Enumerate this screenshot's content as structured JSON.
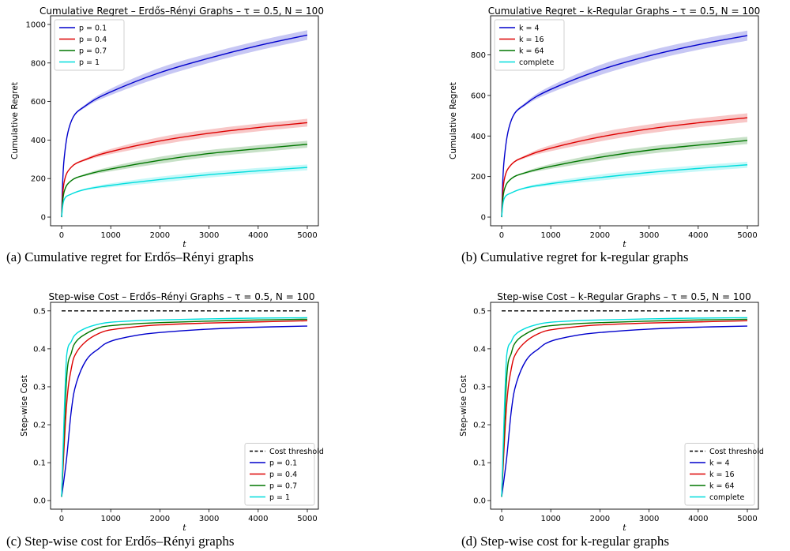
{
  "chart_data": [
    {
      "type": "line",
      "title": "Cumulative Regret – Erdős–Rényi Graphs – τ = 0.5, N = 100",
      "xlabel": "t",
      "ylabel": "Cumulative Regret",
      "caption": "(a) Cumulative regret for Erdős–Rényi graphs",
      "xlim": [
        0,
        5000
      ],
      "ylim": [
        0,
        1000
      ],
      "xticks": [
        "0",
        "1000",
        "2000",
        "3000",
        "4000",
        "5000"
      ],
      "yticks": [
        "0",
        "200",
        "400",
        "600",
        "800",
        "1000"
      ],
      "legend_position": "upper-left",
      "x": [
        0,
        50,
        200,
        500,
        1000,
        2000,
        3000,
        4000,
        5000
      ],
      "series": [
        {
          "name": "p = 0.1",
          "color": "#0000cc",
          "values": [
            0,
            300,
            500,
            580,
            650,
            750,
            825,
            890,
            945
          ],
          "band": 25
        },
        {
          "name": "p = 0.4",
          "color": "#dd0000",
          "values": [
            0,
            180,
            260,
            300,
            340,
            395,
            435,
            465,
            490
          ],
          "band": 20
        },
        {
          "name": "p = 0.7",
          "color": "#007700",
          "values": [
            0,
            130,
            190,
            220,
            250,
            295,
            330,
            355,
            378
          ],
          "band": 18
        },
        {
          "name": "p = 1",
          "color": "#00dddd",
          "values": [
            0,
            90,
            120,
            145,
            165,
            195,
            220,
            240,
            258
          ],
          "band": 15
        }
      ]
    },
    {
      "type": "line",
      "title": "Cumulative Regret – k-Regular Graphs – τ = 0.5, N = 100",
      "xlabel": "t",
      "ylabel": "Cumulative Regret",
      "caption": "(b) Cumulative regret for k-regular graphs",
      "xlim": [
        0,
        5000
      ],
      "ylim": [
        0,
        950
      ],
      "xticks": [
        "0",
        "1000",
        "2000",
        "3000",
        "4000",
        "5000"
      ],
      "yticks": [
        "0",
        "200",
        "400",
        "600",
        "800"
      ],
      "legend_position": "upper-left",
      "x": [
        0,
        50,
        200,
        500,
        1000,
        2000,
        3000,
        4000,
        5000
      ],
      "series": [
        {
          "name": "k = 4",
          "color": "#0000cc",
          "values": [
            0,
            280,
            480,
            560,
            630,
            725,
            795,
            850,
            895
          ],
          "band": 25
        },
        {
          "name": "k = 16",
          "color": "#dd0000",
          "values": [
            0,
            180,
            260,
            300,
            340,
            395,
            435,
            465,
            490
          ],
          "band": 22
        },
        {
          "name": "k = 64",
          "color": "#007700",
          "values": [
            0,
            130,
            190,
            220,
            250,
            295,
            330,
            355,
            378
          ],
          "band": 18
        },
        {
          "name": "complete",
          "color": "#00dddd",
          "values": [
            0,
            90,
            120,
            145,
            165,
            195,
            220,
            240,
            258
          ],
          "band": 15
        }
      ]
    },
    {
      "type": "line",
      "title": "Step-wise Cost – Erdős–Rényi Graphs – τ = 0.5, N = 100",
      "xlabel": "t",
      "ylabel": "Step-wise Cost",
      "caption": "(c) Step-wise cost for Erdős–Rényi graphs",
      "xlim": [
        0,
        5000
      ],
      "ylim": [
        0,
        0.5
      ],
      "xticks": [
        "0",
        "1000",
        "2000",
        "3000",
        "4000",
        "5000"
      ],
      "yticks": [
        "0.0",
        "0.1",
        "0.2",
        "0.3",
        "0.4",
        "0.5"
      ],
      "legend_position": "lower-right",
      "threshold": {
        "name": "Cost threshold",
        "value": 0.5,
        "color": "#000000"
      },
      "x": [
        0,
        100,
        200,
        300,
        500,
        750,
        1000,
        1500,
        2000,
        3000,
        4000,
        5000
      ],
      "series": [
        {
          "name": "p = 0.1",
          "color": "#0000cc",
          "values": [
            0.01,
            0.11,
            0.24,
            0.31,
            0.37,
            0.4,
            0.42,
            0.435,
            0.443,
            0.452,
            0.457,
            0.46
          ]
        },
        {
          "name": "p = 0.4",
          "color": "#dd0000",
          "values": [
            0.01,
            0.25,
            0.35,
            0.39,
            0.42,
            0.44,
            0.45,
            0.458,
            0.463,
            0.468,
            0.471,
            0.474
          ]
        },
        {
          "name": "p = 0.7",
          "color": "#007700",
          "values": [
            0.01,
            0.32,
            0.39,
            0.42,
            0.44,
            0.455,
            0.461,
            0.466,
            0.469,
            0.473,
            0.476,
            0.478
          ]
        },
        {
          "name": "p = 1",
          "color": "#00dddd",
          "values": [
            0.01,
            0.38,
            0.42,
            0.44,
            0.455,
            0.465,
            0.47,
            0.474,
            0.476,
            0.479,
            0.481,
            0.482
          ]
        }
      ]
    },
    {
      "type": "line",
      "title": "Step-wise Cost – k-Regular Graphs – τ = 0.5, N = 100",
      "xlabel": "t",
      "ylabel": "Step-wise Cost",
      "caption": "(d) Step-wise cost for k-regular graphs",
      "xlim": [
        0,
        5000
      ],
      "ylim": [
        0,
        0.5
      ],
      "xticks": [
        "0",
        "1000",
        "2000",
        "3000",
        "4000",
        "5000"
      ],
      "yticks": [
        "0.0",
        "0.1",
        "0.2",
        "0.3",
        "0.4",
        "0.5"
      ],
      "legend_position": "lower-right",
      "threshold": {
        "name": "Cost threshold",
        "value": 0.5,
        "color": "#000000"
      },
      "x": [
        0,
        100,
        200,
        300,
        500,
        750,
        1000,
        1500,
        2000,
        3000,
        4000,
        5000
      ],
      "series": [
        {
          "name": "k = 4",
          "color": "#0000cc",
          "values": [
            0.01,
            0.11,
            0.24,
            0.31,
            0.37,
            0.4,
            0.42,
            0.435,
            0.443,
            0.452,
            0.457,
            0.46
          ]
        },
        {
          "name": "k = 16",
          "color": "#dd0000",
          "values": [
            0.01,
            0.25,
            0.35,
            0.39,
            0.42,
            0.44,
            0.45,
            0.458,
            0.463,
            0.468,
            0.471,
            0.474
          ]
        },
        {
          "name": "k = 64",
          "color": "#007700",
          "values": [
            0.01,
            0.32,
            0.39,
            0.42,
            0.44,
            0.455,
            0.461,
            0.466,
            0.469,
            0.473,
            0.476,
            0.478
          ]
        },
        {
          "name": "complete",
          "color": "#00dddd",
          "values": [
            0.01,
            0.38,
            0.42,
            0.44,
            0.455,
            0.465,
            0.47,
            0.474,
            0.476,
            0.479,
            0.481,
            0.482
          ]
        }
      ]
    }
  ]
}
